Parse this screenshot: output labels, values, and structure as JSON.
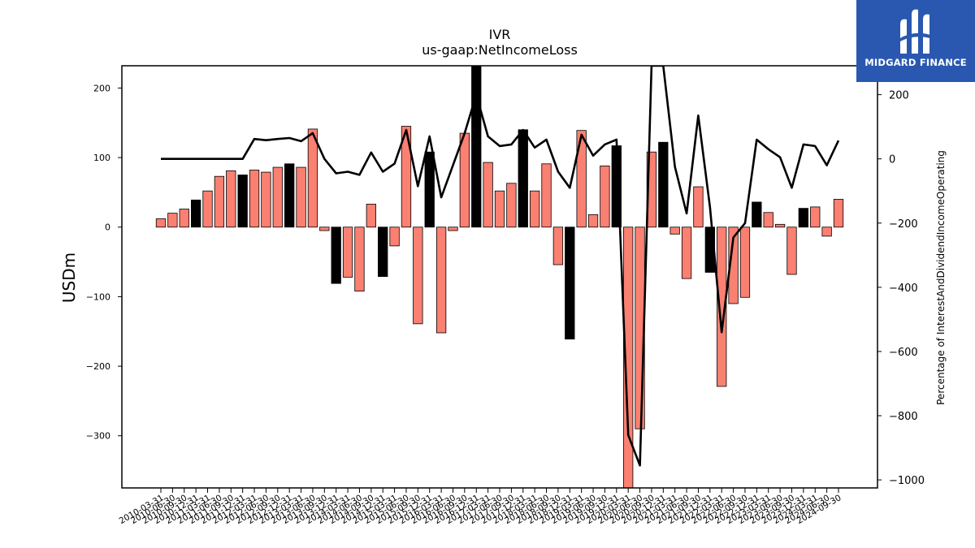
{
  "chart_data": {
    "type": "bar+line",
    "title": "IVR",
    "subtitle": "us-gaap:NetIncomeLoss",
    "ylabel": "USDm",
    "y2label": "Percentage of InterestAndDividendIncomeOperating",
    "ylim": [
      -375,
      232
    ],
    "y2lim": [
      -1025,
      290
    ],
    "yticks": [
      200,
      100,
      0,
      -100,
      -200,
      -300
    ],
    "y2ticks": [
      200,
      0,
      -200,
      -400,
      -600,
      -800,
      -1000
    ],
    "x": [
      "2010-03-31",
      "2010-06-30",
      "2010-09-30",
      "2010-12-31",
      "2011-03-31",
      "2011-06-30",
      "2011-09-30",
      "2011-12-31",
      "2012-03-31",
      "2012-06-30",
      "2012-09-30",
      "2012-12-31",
      "2013-03-31",
      "2013-06-30",
      "2013-09-30",
      "2013-12-31",
      "2014-03-31",
      "2014-06-30",
      "2014-09-30",
      "2014-12-31",
      "2015-03-31",
      "2015-06-30",
      "2015-09-30",
      "2015-12-31",
      "2016-03-31",
      "2016-06-30",
      "2016-09-30",
      "2016-12-31",
      "2017-03-31",
      "2017-06-30",
      "2017-09-30",
      "2017-12-31",
      "2018-03-31",
      "2018-06-30",
      "2018-09-30",
      "2018-12-31",
      "2019-03-31",
      "2019-06-30",
      "2019-09-30",
      "2019-12-31",
      "2020-03-31",
      "2020-06-30",
      "2020-09-30",
      "2020-12-31",
      "2021-03-31",
      "2021-06-30",
      "2021-09-30",
      "2021-12-31",
      "2022-03-31",
      "2022-06-30",
      "2022-09-30",
      "2022-12-31",
      "2023-03-31",
      "2023-06-30",
      "2023-09-30",
      "2023-12-31",
      "2024-03-31",
      "2024-06-30",
      "2024-09-30"
    ],
    "xtick_labels": [
      "2010-03-31",
      "2010-06-30",
      "2010-09-30",
      "2010-12-31",
      "2011-03-31",
      "2011-06-30",
      "2011-09-30",
      "2011-12-31",
      "2012-03-31",
      "2012-06-30",
      "2012-09-30",
      "2012-12-31",
      "2013-03-31",
      "2013-06-30",
      "2013-09-30",
      "2013-12-31",
      "2014-03-31",
      "2014-06-30",
      "2014-09-30",
      "2014-12-31",
      "2015-03-31",
      "2015-06-30",
      "2015-09-30",
      "2015-12-31",
      "2016-03-31",
      "2016-06-30",
      "2016-09-30",
      "2016-12-31",
      "2017-03-31",
      "2017-06-30",
      "2017-09-30",
      "2017-12-31",
      "2018-03-31",
      "2018-06-30",
      "2018-09-30",
      "2018-12-31",
      "2019-03-31",
      "2019-06-30",
      "2019-09-30",
      "2019-12-31",
      "2020-03-31",
      "2020-06-30",
      "2020-09-30",
      "2020-12-31",
      "2021-03-31",
      "2021-06-30",
      "2021-09-30",
      "2021-12-31",
      "2022-03-31",
      "2022-06-30",
      "2022-09-30",
      "2022-12-31",
      "2023-03-31",
      "2023-06-30",
      "2023-09-30",
      "2023-12-31",
      "2024-03-31",
      "2024-06-30",
      "2024-09-30"
    ],
    "bar_values": [
      12,
      20,
      26,
      39,
      52,
      73,
      81,
      75,
      82,
      79,
      86,
      91,
      86,
      141,
      -5,
      -81,
      -72,
      -92,
      33,
      -71,
      -27,
      145,
      -139,
      108,
      -152,
      -5,
      135,
      232,
      93,
      52,
      63,
      140,
      52,
      91,
      -54,
      -161,
      139,
      18,
      88,
      117,
      -375,
      -290,
      108,
      122,
      -10,
      -74,
      58,
      -65,
      -229,
      -110,
      -101,
      36,
      21,
      4,
      -68,
      27,
      29,
      -13,
      40
    ],
    "bar_highlight": [
      false,
      false,
      false,
      true,
      false,
      false,
      false,
      true,
      false,
      false,
      false,
      true,
      false,
      false,
      false,
      true,
      false,
      false,
      false,
      true,
      false,
      false,
      false,
      true,
      false,
      false,
      false,
      true,
      false,
      false,
      false,
      true,
      false,
      false,
      false,
      true,
      false,
      false,
      false,
      true,
      false,
      false,
      false,
      true,
      false,
      false,
      false,
      true,
      false,
      false,
      false,
      true,
      false,
      false,
      false,
      true,
      false,
      false,
      false
    ],
    "line_values": [
      0,
      0,
      0,
      0,
      0,
      0,
      0,
      0,
      62,
      58,
      62,
      65,
      55,
      80,
      0,
      -45,
      -40,
      -50,
      20,
      -40,
      -15,
      90,
      -85,
      70,
      -120,
      -20,
      80,
      200,
      70,
      40,
      45,
      90,
      35,
      60,
      -40,
      -90,
      75,
      10,
      45,
      60,
      -860,
      -955,
      290,
      290,
      -25,
      -170,
      135,
      -150,
      -540,
      -245,
      -200,
      60,
      30,
      5,
      -90,
      45,
      40,
      -20,
      57
    ],
    "colors": {
      "bar": "#fa8072",
      "bar_highlight": "#000000",
      "line": "#000000"
    },
    "grid": false,
    "legend": "none"
  },
  "brand": {
    "name": "MIDGARD FINANCE",
    "bg": "#2a58b0"
  }
}
